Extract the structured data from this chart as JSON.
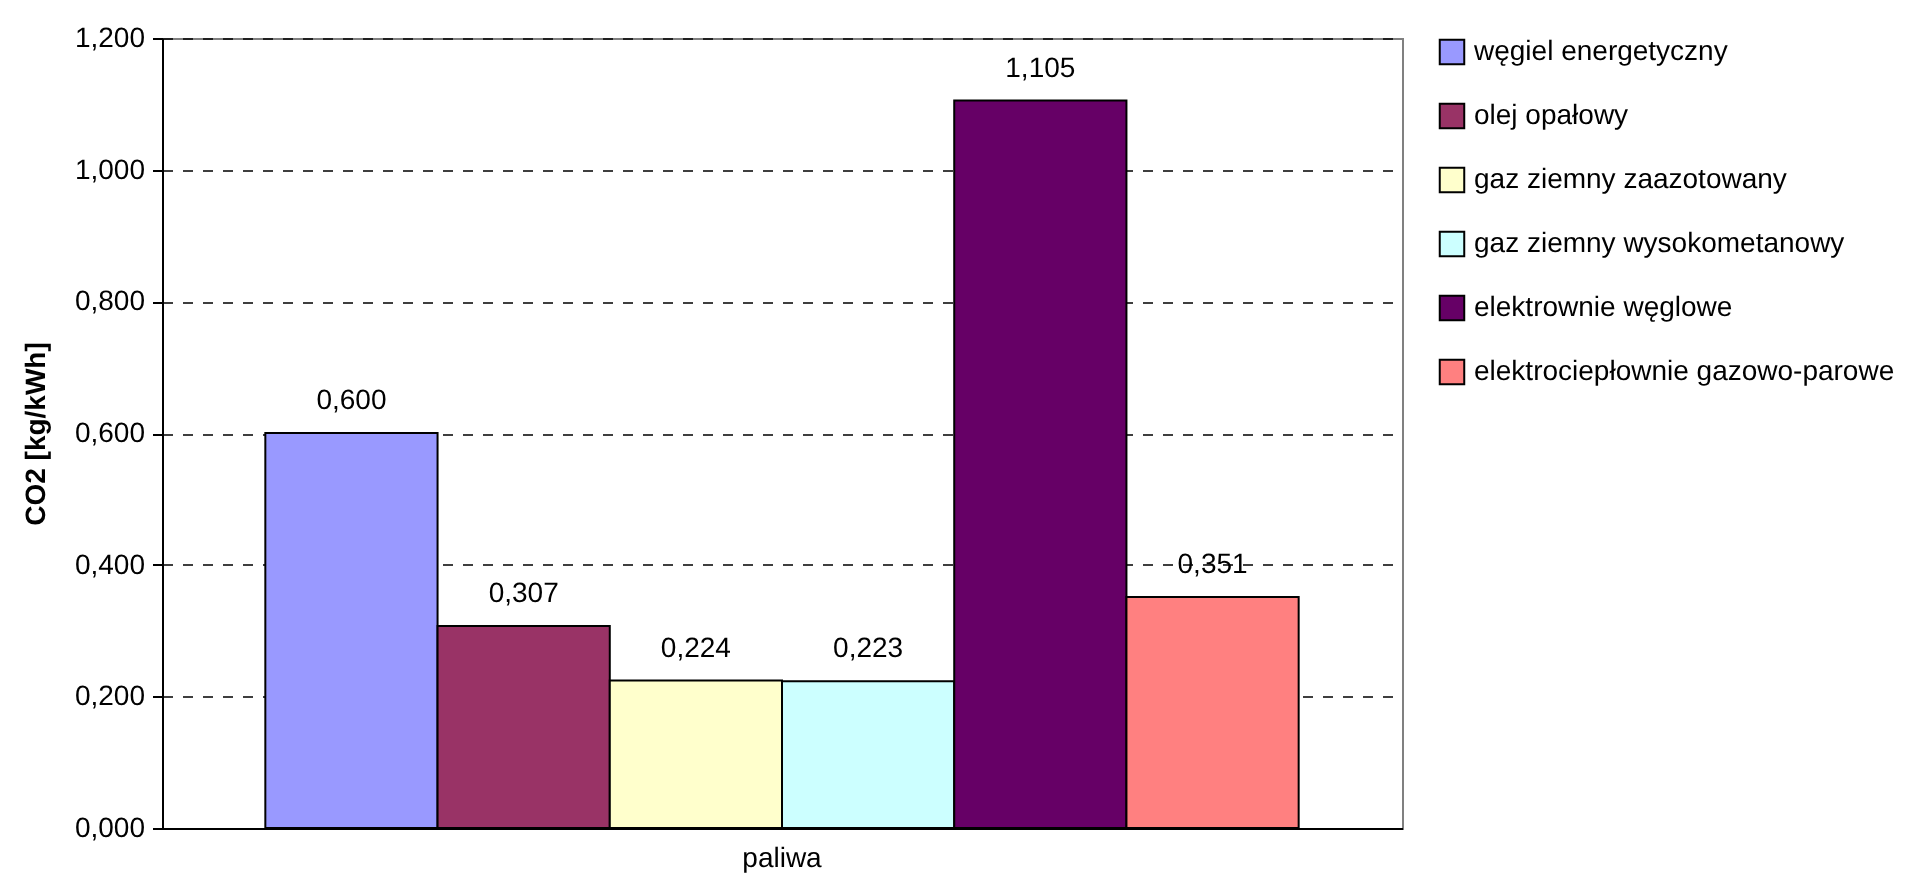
{
  "chart_data": {
    "type": "bar",
    "categories": [
      "paliwa"
    ],
    "ylabel": "CO2 [kg/kWh]",
    "ylim": [
      0,
      1.2
    ],
    "yticks": [
      {
        "value": 0,
        "label": "0,000"
      },
      {
        "value": 0.2,
        "label": "0,200"
      },
      {
        "value": 0.4,
        "label": "0,400"
      },
      {
        "value": 0.6,
        "label": "0,600"
      },
      {
        "value": 0.8,
        "label": "0,800"
      },
      {
        "value": 1.0,
        "label": "1,000"
      },
      {
        "value": 1.2,
        "label": "1,200"
      }
    ],
    "series": [
      {
        "name": "węgiel energetyczny",
        "color": "#9999ff",
        "values": [
          0.6
        ],
        "value_labels": [
          "0,600"
        ]
      },
      {
        "name": "olej opałowy",
        "color": "#993366",
        "values": [
          0.307
        ],
        "value_labels": [
          "0,307"
        ]
      },
      {
        "name": "gaz ziemny zaazotowany",
        "color": "#ffffcc",
        "values": [
          0.224
        ],
        "value_labels": [
          "0,224"
        ]
      },
      {
        "name": "gaz ziemny wysokometanowy",
        "color": "#ccffff",
        "values": [
          0.223
        ],
        "value_labels": [
          "0,223"
        ]
      },
      {
        "name": "elektrownie węglowe",
        "color": "#660066",
        "values": [
          1.105
        ],
        "value_labels": [
          "1,105"
        ]
      },
      {
        "name": "elektrociepłownie gazowo-parowe",
        "color": "#ff8080",
        "values": [
          0.351
        ],
        "value_labels": [
          "0,351"
        ]
      }
    ],
    "grid": "y",
    "legend": "right"
  }
}
